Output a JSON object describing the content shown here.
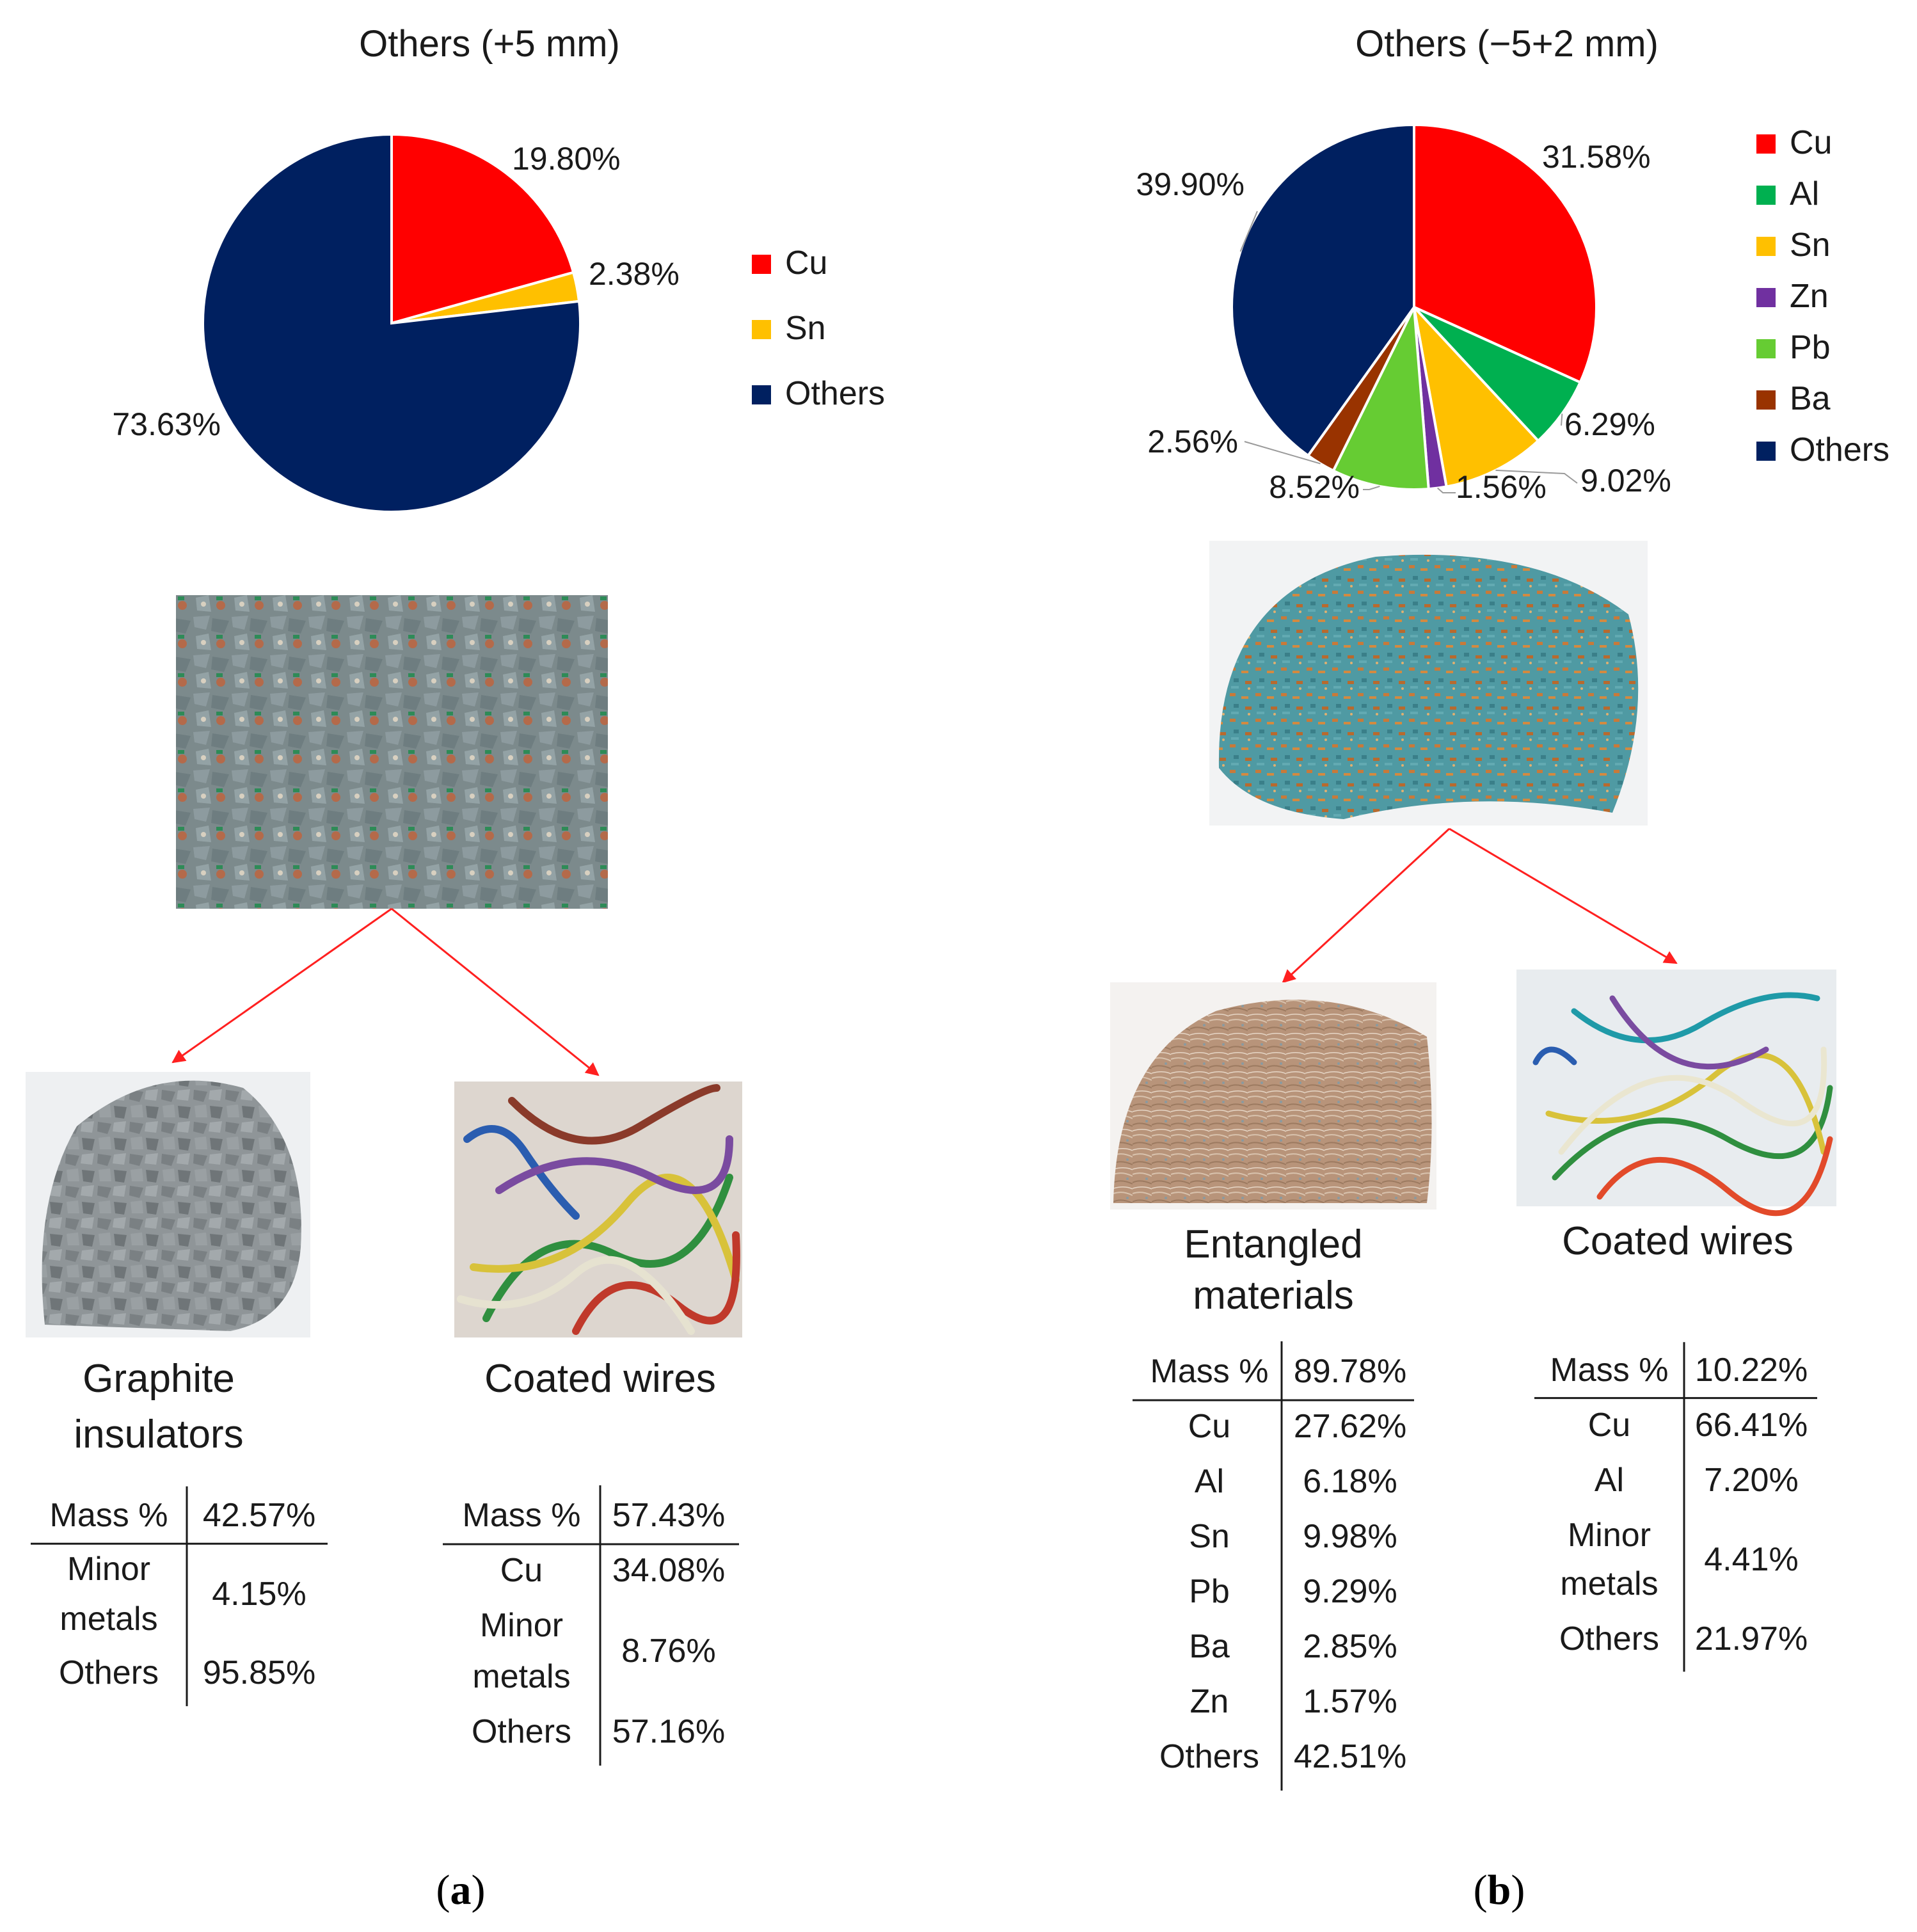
{
  "chart_data": [
    {
      "type": "pie",
      "title": "Others (+5 mm)",
      "slices": [
        {
          "name": "Cu",
          "value": 19.8,
          "label": "19.80%",
          "color": "#ff0000"
        },
        {
          "name": "Sn",
          "value": 2.38,
          "label": "2.38%",
          "color": "#ffc000"
        },
        {
          "name": "Others",
          "value": 73.63,
          "label": "73.63%",
          "color": "#002060"
        }
      ],
      "legend": [
        "Cu",
        "Sn",
        "Others"
      ],
      "legend_position": "right"
    },
    {
      "type": "pie",
      "title": "Others (−5+2 mm)",
      "slices": [
        {
          "name": "Cu",
          "value": 31.58,
          "label": "31.58%",
          "color": "#ff0000"
        },
        {
          "name": "Al",
          "value": 6.29,
          "label": "6.29%",
          "color": "#00b050"
        },
        {
          "name": "Sn",
          "value": 9.02,
          "label": "9.02%",
          "color": "#ffc000"
        },
        {
          "name": "Zn",
          "value": 1.56,
          "label": "1.56%",
          "color": "#7030a0"
        },
        {
          "name": "Pb",
          "value": 8.52,
          "label": "8.52%",
          "color": "#66cc33"
        },
        {
          "name": "Ba",
          "value": 2.56,
          "label": "2.56%",
          "color": "#993300"
        },
        {
          "name": "Others",
          "value": 39.9,
          "label": "39.90%",
          "color": "#002060"
        }
      ],
      "legend": [
        "Cu",
        "Al",
        "Sn",
        "Zn",
        "Pb",
        "Ba",
        "Others"
      ],
      "legend_position": "right"
    }
  ],
  "panel_a": {
    "label_open": "(",
    "label_letter": "a",
    "label_close": ")",
    "items": [
      {
        "caption_line1": "Graphite",
        "caption_line2": "insulators",
        "table": [
          {
            "name": "Mass %",
            "value": "42.57%"
          },
          {
            "name": "Minor\nmetals",
            "value": "4.15%"
          },
          {
            "name": "Others",
            "value": "95.85%"
          }
        ]
      },
      {
        "caption_line1": "Coated wires",
        "caption_line2": "",
        "table": [
          {
            "name": "Mass %",
            "value": "57.43%"
          },
          {
            "name": "Cu",
            "value": "34.08%"
          },
          {
            "name": "Minor\nmetals",
            "value": "8.76%"
          },
          {
            "name": "Others",
            "value": "57.16%"
          }
        ]
      }
    ]
  },
  "panel_b": {
    "label_open": "(",
    "label_letter": "b",
    "label_close": ")",
    "items": [
      {
        "caption_line1": "Entangled",
        "caption_line2": "materials",
        "table": [
          {
            "name": "Mass %",
            "value": "89.78%"
          },
          {
            "name": "Cu",
            "value": "27.62%"
          },
          {
            "name": "Al",
            "value": "6.18%"
          },
          {
            "name": "Sn",
            "value": "9.98%"
          },
          {
            "name": "Pb",
            "value": "9.29%"
          },
          {
            "name": "Ba",
            "value": "2.85%"
          },
          {
            "name": "Zn",
            "value": "1.57%"
          },
          {
            "name": "Others",
            "value": "42.51%"
          }
        ]
      },
      {
        "caption_line1": "Coated wires",
        "caption_line2": "",
        "table": [
          {
            "name": "Mass %",
            "value": "10.22%"
          },
          {
            "name": "Cu",
            "value": "66.41%"
          },
          {
            "name": "Al",
            "value": "7.20%"
          },
          {
            "name": "Minor\nmetals",
            "value": "4.41%"
          },
          {
            "name": "Others",
            "value": "21.97%"
          }
        ]
      }
    ]
  }
}
